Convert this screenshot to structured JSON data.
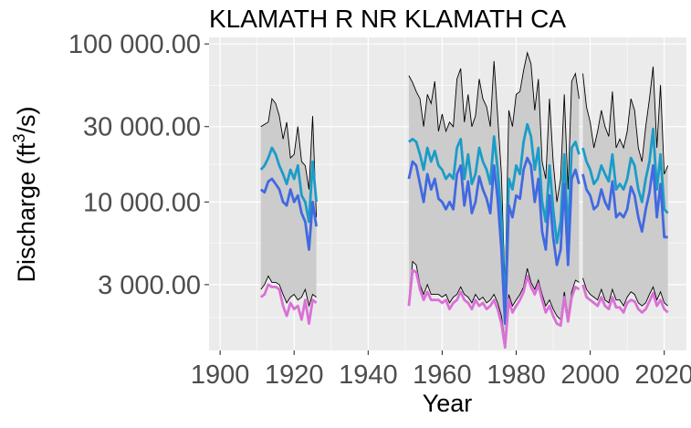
{
  "chart_data": {
    "type": "line",
    "title": "KLAMATH R NR KLAMATH CA",
    "xlabel": "Year",
    "ylabel": "Discharge (ft³/s)",
    "ylabel_parts": {
      "main": "Discharge (ft",
      "sup": "3",
      "tail": "/s)"
    },
    "y_scale": "log10",
    "xlim": [
      1897,
      2026
    ],
    "ylim": [
      1150,
      110000
    ],
    "x_ticks": [
      1900,
      1920,
      1940,
      1960,
      1980,
      2000,
      2020
    ],
    "x_tick_labels": [
      "1900",
      "1920",
      "1940",
      "1960",
      "1980",
      "2000",
      "2020"
    ],
    "y_ticks": [
      3000,
      10000,
      30000,
      100000
    ],
    "y_tick_labels": [
      "3 000.00",
      "10 000.00",
      "30 000.00",
      "100 000.00"
    ],
    "grid": true,
    "colors": {
      "panel_bg": "#EBEBEB",
      "grid": "#FFFFFF",
      "band_fill": "#CCCCCC",
      "band_edge": "#000000",
      "upper": "#1B9CC8",
      "middle": "#4169E1",
      "lower": "#DA70D6"
    },
    "segments": [
      {
        "x": [
          1911,
          1912,
          1913,
          1914,
          1915,
          1916,
          1917,
          1918,
          1919,
          1920,
          1921,
          1922,
          1923,
          1924,
          1925,
          1926
        ],
        "band_max": [
          30000,
          31000,
          32000,
          45000,
          42000,
          35000,
          25000,
          32000,
          19000,
          20000,
          30000,
          18000,
          17000,
          12000,
          35000,
          8000
        ],
        "band_min": [
          2800,
          3000,
          3400,
          3100,
          3100,
          3000,
          2600,
          2300,
          2500,
          2600,
          2400,
          2500,
          2800,
          2200,
          2600,
          2500
        ],
        "upper": [
          16000,
          17000,
          19000,
          22000,
          20000,
          17000,
          15000,
          13000,
          16000,
          14000,
          17000,
          11000,
          10000,
          7500,
          18000,
          10000
        ],
        "middle": [
          12000,
          11500,
          13500,
          14000,
          13000,
          12000,
          10000,
          9500,
          12000,
          10000,
          11000,
          8500,
          7500,
          5000,
          10000,
          7000
        ],
        "lower": [
          2500,
          2600,
          3000,
          2900,
          2900,
          2800,
          2200,
          1900,
          2300,
          2100,
          2200,
          1800,
          2400,
          1700,
          2400,
          2300
        ]
      },
      {
        "x": [
          1951,
          1952,
          1953,
          1954,
          1955,
          1956,
          1957,
          1958,
          1959,
          1960,
          1961,
          1962,
          1963,
          1964,
          1965,
          1966,
          1967,
          1968,
          1969,
          1970,
          1971,
          1972,
          1973,
          1974,
          1975,
          1976,
          1977,
          1978,
          1979,
          1980,
          1981,
          1982,
          1983,
          1984,
          1985,
          1986,
          1987,
          1988,
          1989,
          1990,
          1991,
          1992,
          1993,
          1994,
          1995,
          1996,
          1997
        ],
        "band_max": [
          63000,
          57000,
          50000,
          45000,
          30000,
          48000,
          42000,
          58000,
          28000,
          36000,
          28000,
          32000,
          30000,
          60000,
          70000,
          32000,
          48000,
          30000,
          35000,
          60000,
          45000,
          40000,
          30000,
          78000,
          35000,
          15000,
          2800,
          38000,
          30000,
          48000,
          50000,
          68000,
          88000,
          75000,
          38000,
          60000,
          18000,
          14000,
          45000,
          18000,
          10000,
          14000,
          48000,
          12000,
          58000,
          65000,
          45000
        ],
        "band_min": [
          2400,
          4200,
          4000,
          3000,
          2600,
          3000,
          2600,
          2600,
          2600,
          2500,
          2600,
          2300,
          2500,
          2600,
          2900,
          2600,
          2500,
          2300,
          2600,
          2400,
          2500,
          2300,
          2400,
          2600,
          2300,
          1900,
          1300,
          2600,
          2200,
          2400,
          2600,
          2900,
          3800,
          3100,
          2800,
          3200,
          2600,
          2200,
          2400,
          2100,
          1900,
          1800,
          2700,
          1900,
          2700,
          3200,
          3100
        ],
        "upper": [
          24000,
          25000,
          24000,
          20000,
          16000,
          22000,
          18000,
          21000,
          17000,
          16000,
          14000,
          15000,
          14000,
          22000,
          25000,
          14000,
          20000,
          13000,
          15000,
          22000,
          18000,
          16000,
          13000,
          26000,
          16000,
          8000,
          1900,
          14000,
          12000,
          17000,
          15000,
          24000,
          31000,
          26000,
          16000,
          22000,
          10000,
          7500,
          17000,
          9000,
          5500,
          7500,
          20000,
          6000,
          22000,
          24000,
          20000
        ],
        "middle": [
          14000,
          18000,
          17000,
          13000,
          10000,
          15000,
          12000,
          14000,
          10500,
          10000,
          9000,
          10000,
          9000,
          15000,
          17000,
          9500,
          13500,
          8500,
          10000,
          14500,
          12000,
          10500,
          8500,
          17000,
          10500,
          5000,
          1700,
          9500,
          8000,
          11000,
          10500,
          16000,
          19000,
          17000,
          10000,
          14000,
          6500,
          5000,
          11000,
          6000,
          4000,
          5000,
          13000,
          4000,
          14000,
          16000,
          13000
        ],
        "lower": [
          2200,
          3700,
          3600,
          2800,
          2400,
          2700,
          2400,
          2400,
          2400,
          2300,
          2400,
          2100,
          2300,
          2400,
          2700,
          2400,
          2300,
          2100,
          2400,
          2200,
          2300,
          2100,
          2200,
          2400,
          2100,
          1700,
          1200,
          2400,
          2000,
          2200,
          2400,
          2700,
          3400,
          2900,
          2600,
          3000,
          2400,
          2000,
          2200,
          1900,
          1700,
          1650,
          2500,
          1750,
          2500,
          2900,
          2800
        ]
      },
      {
        "x": [
          1998,
          1999,
          2000,
          2001,
          2002,
          2003,
          2004,
          2005,
          2006,
          2007,
          2008,
          2009,
          2010,
          2011,
          2012,
          2013,
          2014,
          2015,
          2016,
          2017,
          2018,
          2019,
          2020,
          2021
        ],
        "band_max": [
          65000,
          40000,
          32000,
          22000,
          28000,
          38000,
          30000,
          26000,
          50000,
          22000,
          25000,
          22000,
          28000,
          45000,
          38000,
          22000,
          18000,
          30000,
          45000,
          72000,
          22000,
          55000,
          15000,
          17000
        ],
        "band_min": [
          3300,
          2800,
          2600,
          2500,
          2400,
          2800,
          2400,
          2300,
          2800,
          2400,
          2400,
          2200,
          2500,
          2700,
          2600,
          2300,
          2200,
          2300,
          2600,
          2900,
          2400,
          2700,
          2300,
          2200
        ],
        "upper": [
          22000,
          18000,
          16000,
          13000,
          14000,
          17000,
          15000,
          13500,
          20000,
          12000,
          13000,
          12000,
          14000,
          19000,
          17000,
          12000,
          10000,
          14000,
          18000,
          29000,
          12000,
          20000,
          9000,
          8500
        ],
        "middle": [
          15000,
          12000,
          11000,
          9000,
          9500,
          12000,
          10000,
          9000,
          13500,
          8000,
          8500,
          8000,
          9000,
          12500,
          11000,
          8000,
          6500,
          9000,
          11500,
          17000,
          8000,
          13000,
          6000,
          6000
        ],
        "lower": [
          3000,
          2500,
          2400,
          2300,
          2200,
          2500,
          2200,
          2100,
          2500,
          2150,
          2150,
          2000,
          2300,
          2400,
          2350,
          2100,
          2000,
          2100,
          2350,
          2650,
          2200,
          2400,
          2100,
          2000
        ]
      }
    ]
  }
}
